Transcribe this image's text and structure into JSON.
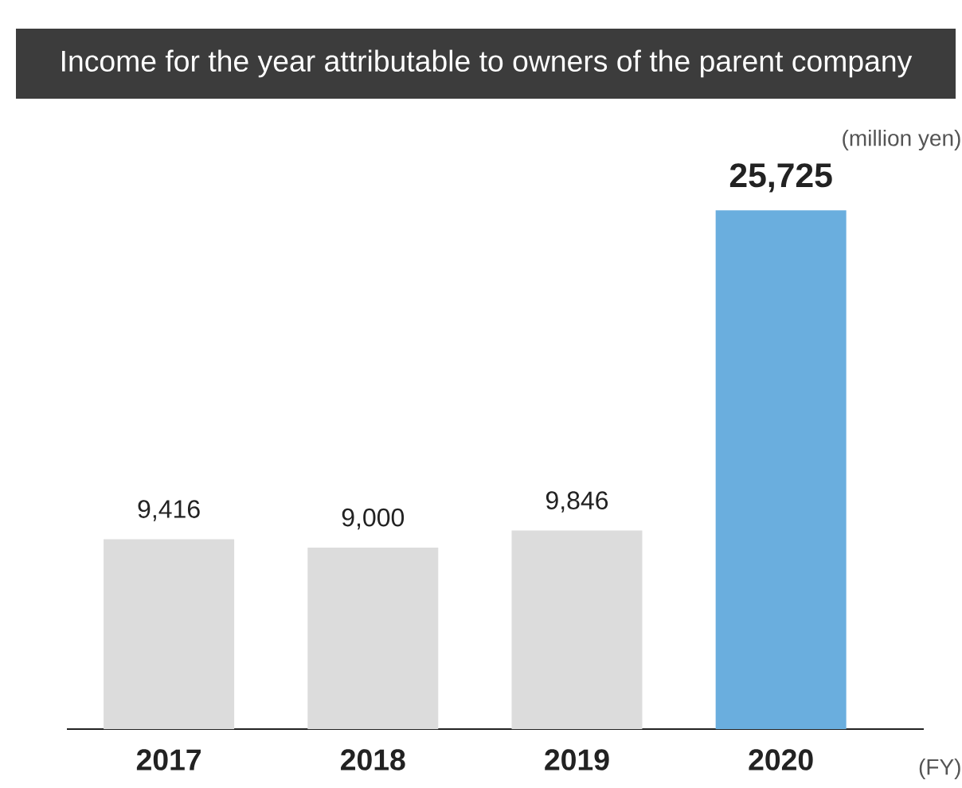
{
  "chart_data": {
    "type": "bar",
    "title": "Income for the year attributable to owners of the parent company",
    "ylabel": "(million yen)",
    "xlabel": "(FY)",
    "categories": [
      "2017",
      "2018",
      "2019",
      "2020"
    ],
    "values": [
      9416,
      9000,
      9846,
      25725
    ],
    "colors": [
      "#dcdcdc",
      "#dcdcdc",
      "#dcdcdc",
      "#6aaede"
    ],
    "value_labels": [
      "9,416",
      "9,000",
      "9,846",
      "25,725"
    ]
  }
}
